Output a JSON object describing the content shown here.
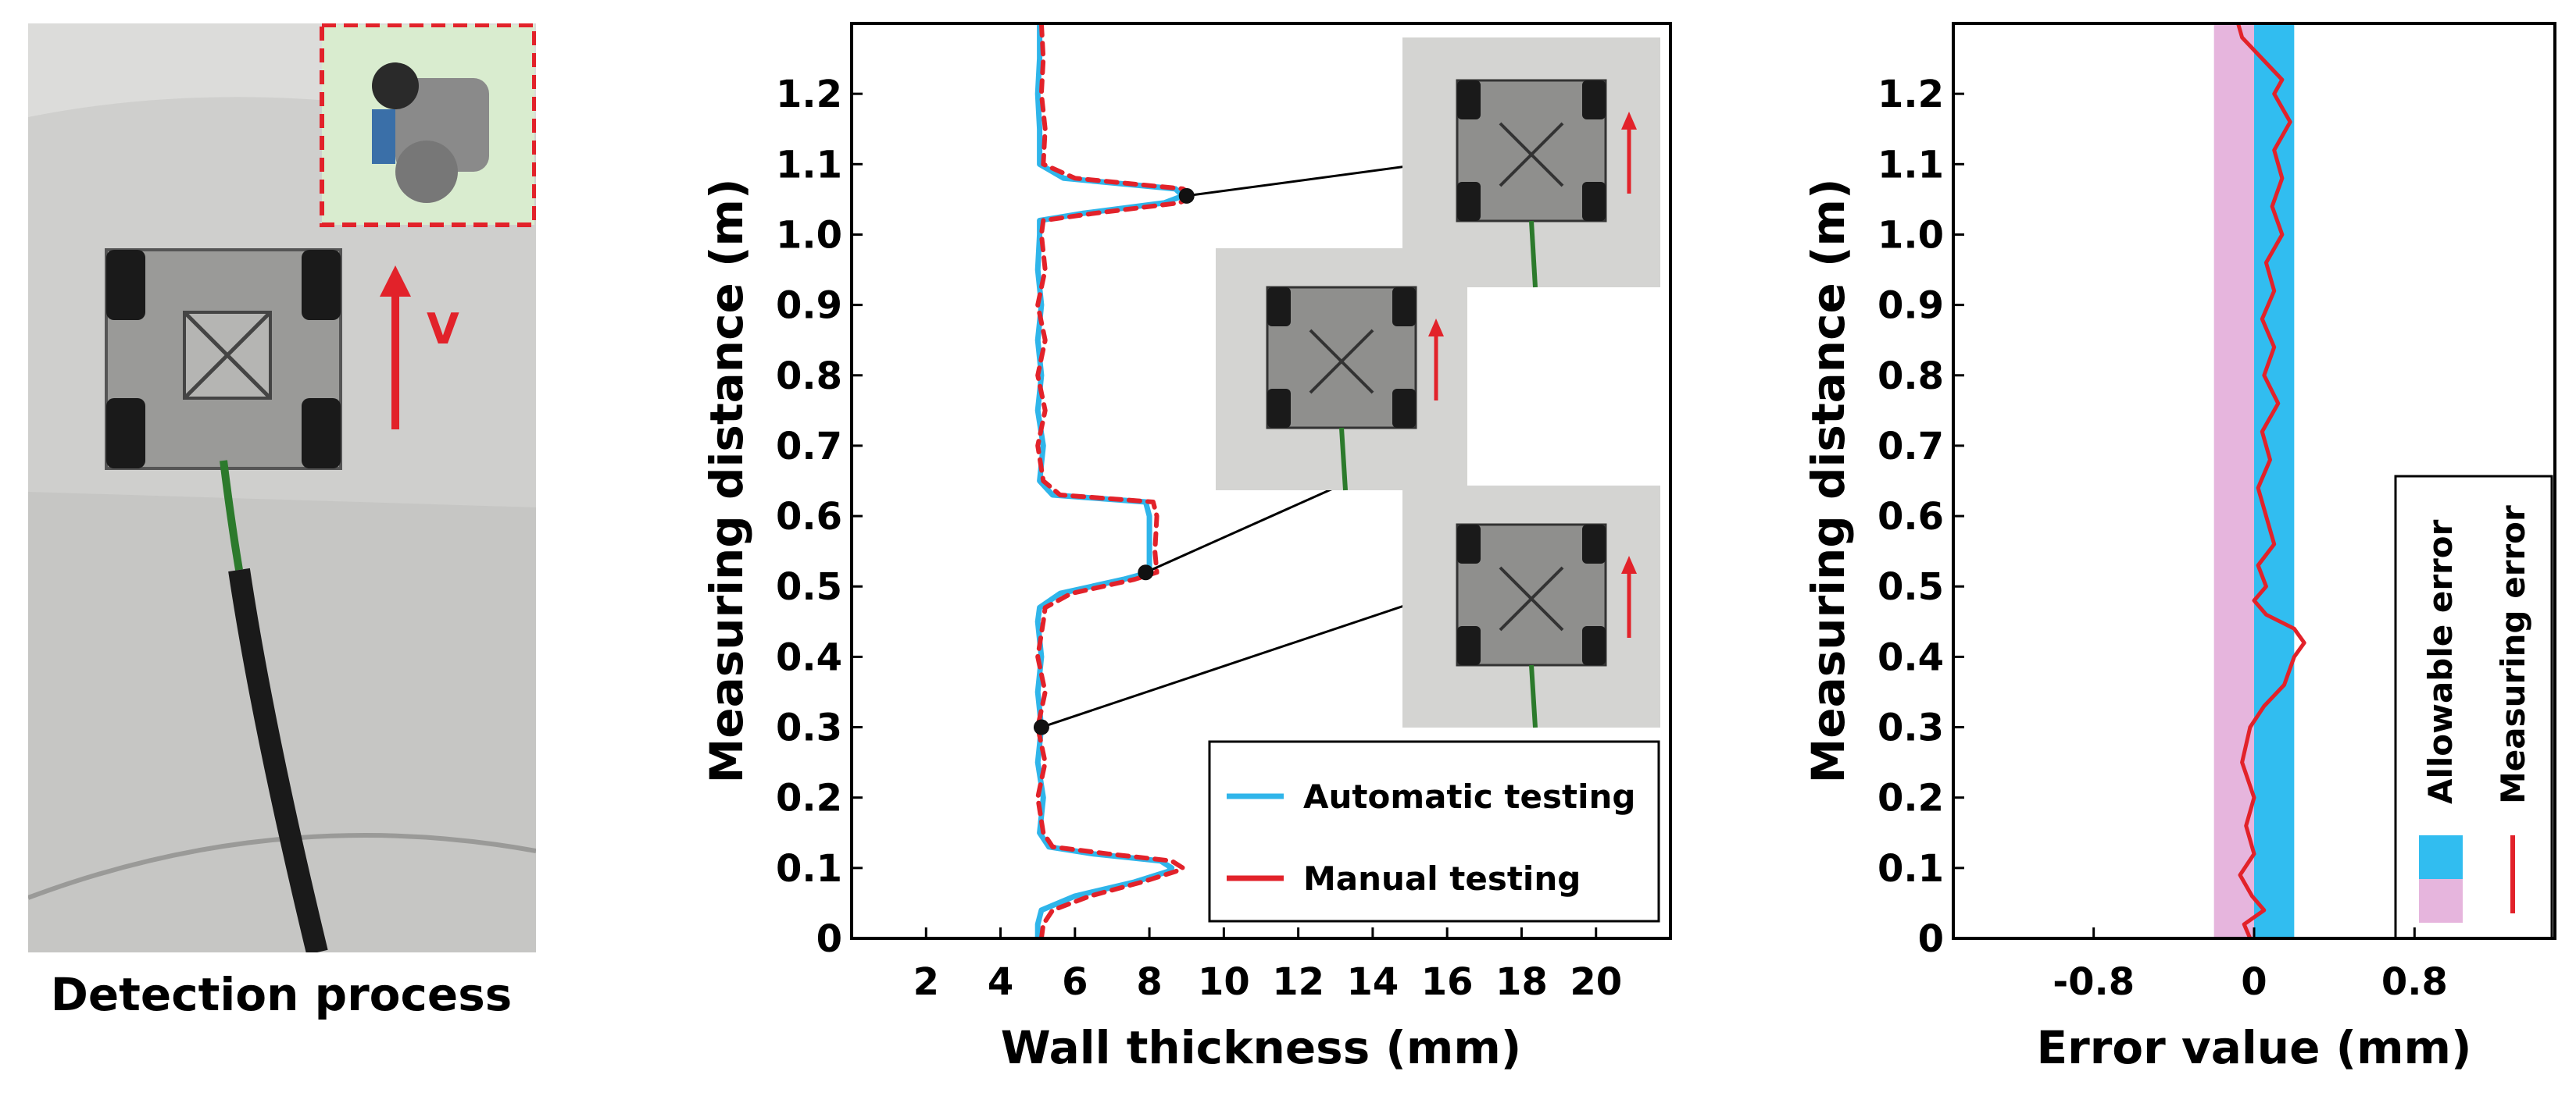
{
  "photo_panel": {
    "caption": "Detection process",
    "velocity_label": "V"
  },
  "chart_data": [
    {
      "type": "line",
      "xlabel": "Wall thickness (mm)",
      "ylabel": "Measuring distance (m)",
      "xlim": [
        0,
        22
      ],
      "ylim": [
        0,
        1.3
      ],
      "xticks": [
        2,
        4,
        6,
        8,
        10,
        12,
        14,
        16,
        18,
        20
      ],
      "yticks": [
        0,
        0.1,
        0.2,
        0.3,
        0.4,
        0.5,
        0.6,
        0.7,
        0.8,
        0.9,
        1.0,
        1.1,
        1.2
      ],
      "ytick_labels": [
        "0",
        "0.1",
        "0.2",
        "0.3",
        "0.4",
        "0.5",
        "0.6",
        "0.7",
        "0.8",
        "0.9",
        "1.0",
        "1.1",
        "1.2"
      ],
      "legend_position": "bottom-right",
      "series": [
        {
          "name": "Automatic testing",
          "color": "#2fb5ea",
          "points": [
            [
              5.0,
              0.0
            ],
            [
              5.0,
              0.02
            ],
            [
              5.1,
              0.04
            ],
            [
              6.0,
              0.06
            ],
            [
              7.6,
              0.08
            ],
            [
              8.5,
              0.095
            ],
            [
              8.6,
              0.1
            ],
            [
              8.3,
              0.11
            ],
            [
              6.5,
              0.12
            ],
            [
              5.3,
              0.13
            ],
            [
              5.05,
              0.15
            ],
            [
              5.15,
              0.2
            ],
            [
              5.0,
              0.25
            ],
            [
              5.1,
              0.3
            ],
            [
              5.0,
              0.35
            ],
            [
              5.1,
              0.4
            ],
            [
              5.0,
              0.45
            ],
            [
              5.05,
              0.47
            ],
            [
              5.6,
              0.49
            ],
            [
              7.3,
              0.51
            ],
            [
              8.0,
              0.52
            ],
            [
              8.0,
              0.55
            ],
            [
              8.0,
              0.6
            ],
            [
              7.9,
              0.62
            ],
            [
              5.4,
              0.63
            ],
            [
              5.05,
              0.65
            ],
            [
              5.15,
              0.7
            ],
            [
              5.0,
              0.75
            ],
            [
              5.1,
              0.8
            ],
            [
              5.0,
              0.85
            ],
            [
              5.1,
              0.9
            ],
            [
              5.0,
              0.95
            ],
            [
              5.05,
              1.0
            ],
            [
              5.05,
              1.02
            ],
            [
              6.2,
              1.03
            ],
            [
              8.4,
              1.045
            ],
            [
              8.9,
              1.055
            ],
            [
              8.7,
              1.065
            ],
            [
              5.7,
              1.08
            ],
            [
              5.05,
              1.1
            ],
            [
              5.05,
              1.15
            ],
            [
              5.0,
              1.2
            ],
            [
              5.05,
              1.25
            ],
            [
              5.05,
              1.3
            ]
          ]
        },
        {
          "name": "Manual testing",
          "color": "#e2222a",
          "points": [
            [
              5.1,
              0.0
            ],
            [
              5.15,
              0.02
            ],
            [
              5.4,
              0.04
            ],
            [
              6.4,
              0.06
            ],
            [
              7.8,
              0.08
            ],
            [
              8.7,
              0.095
            ],
            [
              8.9,
              0.1
            ],
            [
              8.6,
              0.11
            ],
            [
              6.9,
              0.12
            ],
            [
              5.4,
              0.13
            ],
            [
              5.15,
              0.15
            ],
            [
              5.0,
              0.2
            ],
            [
              5.2,
              0.25
            ],
            [
              5.0,
              0.3
            ],
            [
              5.2,
              0.35
            ],
            [
              5.0,
              0.4
            ],
            [
              5.15,
              0.45
            ],
            [
              5.2,
              0.47
            ],
            [
              5.9,
              0.49
            ],
            [
              7.6,
              0.51
            ],
            [
              8.2,
              0.52
            ],
            [
              8.15,
              0.55
            ],
            [
              8.2,
              0.6
            ],
            [
              8.1,
              0.62
            ],
            [
              5.6,
              0.63
            ],
            [
              5.15,
              0.65
            ],
            [
              5.0,
              0.7
            ],
            [
              5.2,
              0.75
            ],
            [
              5.0,
              0.8
            ],
            [
              5.2,
              0.85
            ],
            [
              5.0,
              0.9
            ],
            [
              5.2,
              0.95
            ],
            [
              5.1,
              1.0
            ],
            [
              5.15,
              1.02
            ],
            [
              6.5,
              1.03
            ],
            [
              8.8,
              1.045
            ],
            [
              9.2,
              1.055
            ],
            [
              8.9,
              1.065
            ],
            [
              6.0,
              1.08
            ],
            [
              5.15,
              1.1
            ],
            [
              5.2,
              1.15
            ],
            [
              5.1,
              1.2
            ],
            [
              5.15,
              1.25
            ],
            [
              5.1,
              1.3
            ]
          ]
        }
      ],
      "markers": [
        [
          9.0,
          1.055
        ],
        [
          7.9,
          0.52
        ],
        [
          5.1,
          0.3
        ]
      ]
    },
    {
      "type": "line",
      "xlabel": "Error value (mm)",
      "ylabel": "Measuring distance (m)",
      "xlim": [
        -1.5,
        1.5
      ],
      "ylim": [
        0,
        1.3
      ],
      "xticks": [
        -0.8,
        0,
        0.8
      ],
      "xtick_labels": [
        "-0.8",
        "0",
        "0.8"
      ],
      "yticks": [
        0,
        0.1,
        0.2,
        0.3,
        0.4,
        0.5,
        0.6,
        0.7,
        0.8,
        0.9,
        1.0,
        1.1,
        1.2
      ],
      "ytick_labels": [
        "0",
        "0.1",
        "0.2",
        "0.3",
        "0.4",
        "0.5",
        "0.6",
        "0.7",
        "0.8",
        "0.9",
        "1.0",
        "1.1",
        "1.2"
      ],
      "legend_position": "bottom-right",
      "allowable_error": {
        "name": "Allowable error",
        "negative": [
          -0.2,
          0
        ],
        "positive": [
          0,
          0.2
        ],
        "negative_color": "#e6b5dd",
        "positive_color": "#31bdf0"
      },
      "series": [
        {
          "name": "Measuring error",
          "color": "#e2222a",
          "points": [
            [
              -0.02,
              0.0
            ],
            [
              -0.05,
              0.02
            ],
            [
              0.05,
              0.04
            ],
            [
              -0.01,
              0.06
            ],
            [
              -0.07,
              0.09
            ],
            [
              0.0,
              0.12
            ],
            [
              -0.04,
              0.16
            ],
            [
              0.0,
              0.2
            ],
            [
              -0.06,
              0.25
            ],
            [
              -0.02,
              0.3
            ],
            [
              0.05,
              0.33
            ],
            [
              0.15,
              0.36
            ],
            [
              0.2,
              0.4
            ],
            [
              0.25,
              0.42
            ],
            [
              0.2,
              0.44
            ],
            [
              0.06,
              0.46
            ],
            [
              0.0,
              0.48
            ],
            [
              0.06,
              0.5
            ],
            [
              0.02,
              0.53
            ],
            [
              0.1,
              0.56
            ],
            [
              0.06,
              0.6
            ],
            [
              0.02,
              0.64
            ],
            [
              0.08,
              0.68
            ],
            [
              0.04,
              0.72
            ],
            [
              0.12,
              0.76
            ],
            [
              0.05,
              0.8
            ],
            [
              0.1,
              0.84
            ],
            [
              0.04,
              0.88
            ],
            [
              0.1,
              0.92
            ],
            [
              0.06,
              0.96
            ],
            [
              0.14,
              1.0
            ],
            [
              0.09,
              1.04
            ],
            [
              0.14,
              1.08
            ],
            [
              0.1,
              1.12
            ],
            [
              0.18,
              1.16
            ],
            [
              0.1,
              1.2
            ],
            [
              0.14,
              1.22
            ],
            [
              0.04,
              1.25
            ],
            [
              -0.06,
              1.28
            ],
            [
              -0.08,
              1.3
            ]
          ]
        }
      ]
    }
  ]
}
